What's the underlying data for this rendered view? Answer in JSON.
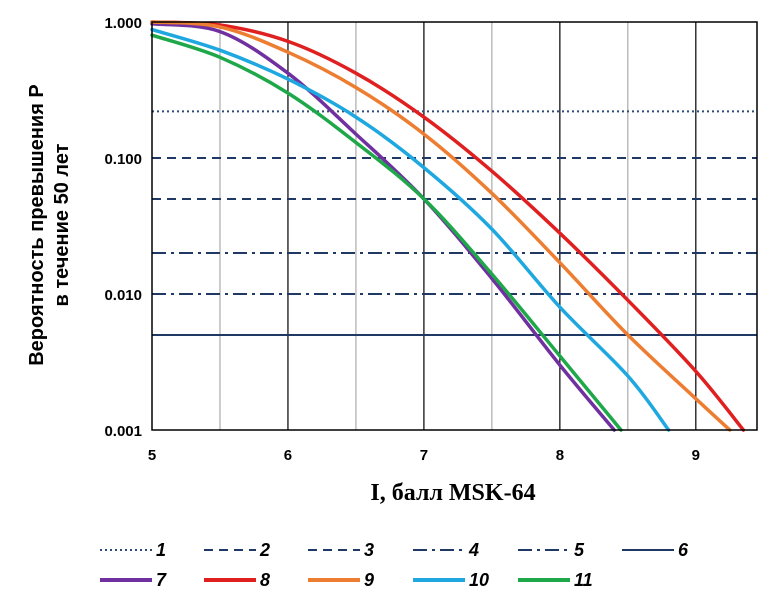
{
  "chart_data": {
    "type": "line",
    "xlabel": "I, балл MSK-64",
    "ylabel": [
      "Вероятность превышения P",
      "в течение 50 лет"
    ],
    "xlim": [
      5,
      9.45
    ],
    "ylim": [
      0.001,
      1.0
    ],
    "y_scale": "log",
    "x_ticks": [
      "5",
      "6",
      "7",
      "8",
      "9"
    ],
    "y_ticks": [
      "1.000",
      "0.100",
      "0.010",
      "0.001"
    ],
    "grid": true,
    "legend_position": "bottom",
    "reference_lines": [
      {
        "name": "1",
        "y": 0.22,
        "style": "dotted",
        "color": "#2e4a7a"
      },
      {
        "name": "2",
        "y": 0.1,
        "style": "dashed",
        "color": "#1f3864"
      },
      {
        "name": "3",
        "y": 0.05,
        "style": "dashed",
        "color": "#1f3864"
      },
      {
        "name": "4",
        "y": 0.02,
        "style": "dashdot",
        "color": "#1f3864"
      },
      {
        "name": "5",
        "y": 0.01,
        "style": "dashdot",
        "color": "#1f3864"
      },
      {
        "name": "6",
        "y": 0.005,
        "style": "solid",
        "color": "#1f3864"
      }
    ],
    "series": [
      {
        "name": "7",
        "color": "#7030a0",
        "x": [
          5.0,
          5.5,
          6.0,
          6.5,
          7.0,
          7.5,
          8.0,
          8.4
        ],
        "y": [
          0.97,
          0.85,
          0.42,
          0.15,
          0.05,
          0.013,
          0.003,
          0.001
        ]
      },
      {
        "name": "8",
        "color": "#e02020",
        "x": [
          5.0,
          5.5,
          6.0,
          6.5,
          7.0,
          7.5,
          8.0,
          8.5,
          9.0,
          9.35
        ],
        "y": [
          1.0,
          0.95,
          0.72,
          0.42,
          0.2,
          0.08,
          0.028,
          0.009,
          0.0027,
          0.001
        ]
      },
      {
        "name": "9",
        "color": "#ed7d31",
        "x": [
          5.0,
          5.5,
          6.0,
          6.5,
          7.0,
          7.5,
          8.0,
          8.5,
          9.0,
          9.25
        ],
        "y": [
          1.0,
          0.92,
          0.6,
          0.33,
          0.15,
          0.055,
          0.017,
          0.005,
          0.0017,
          0.001
        ]
      },
      {
        "name": "10",
        "color": "#1fa8e0",
        "x": [
          5.0,
          5.5,
          6.0,
          6.5,
          7.0,
          7.5,
          8.0,
          8.5,
          8.8
        ],
        "y": [
          0.88,
          0.62,
          0.38,
          0.2,
          0.085,
          0.03,
          0.008,
          0.0025,
          0.001
        ]
      },
      {
        "name": "11",
        "color": "#1ea84a",
        "x": [
          5.0,
          5.5,
          6.0,
          6.5,
          7.0,
          7.5,
          8.0,
          8.45
        ],
        "y": [
          0.8,
          0.55,
          0.3,
          0.13,
          0.05,
          0.014,
          0.0035,
          0.001
        ]
      }
    ]
  }
}
